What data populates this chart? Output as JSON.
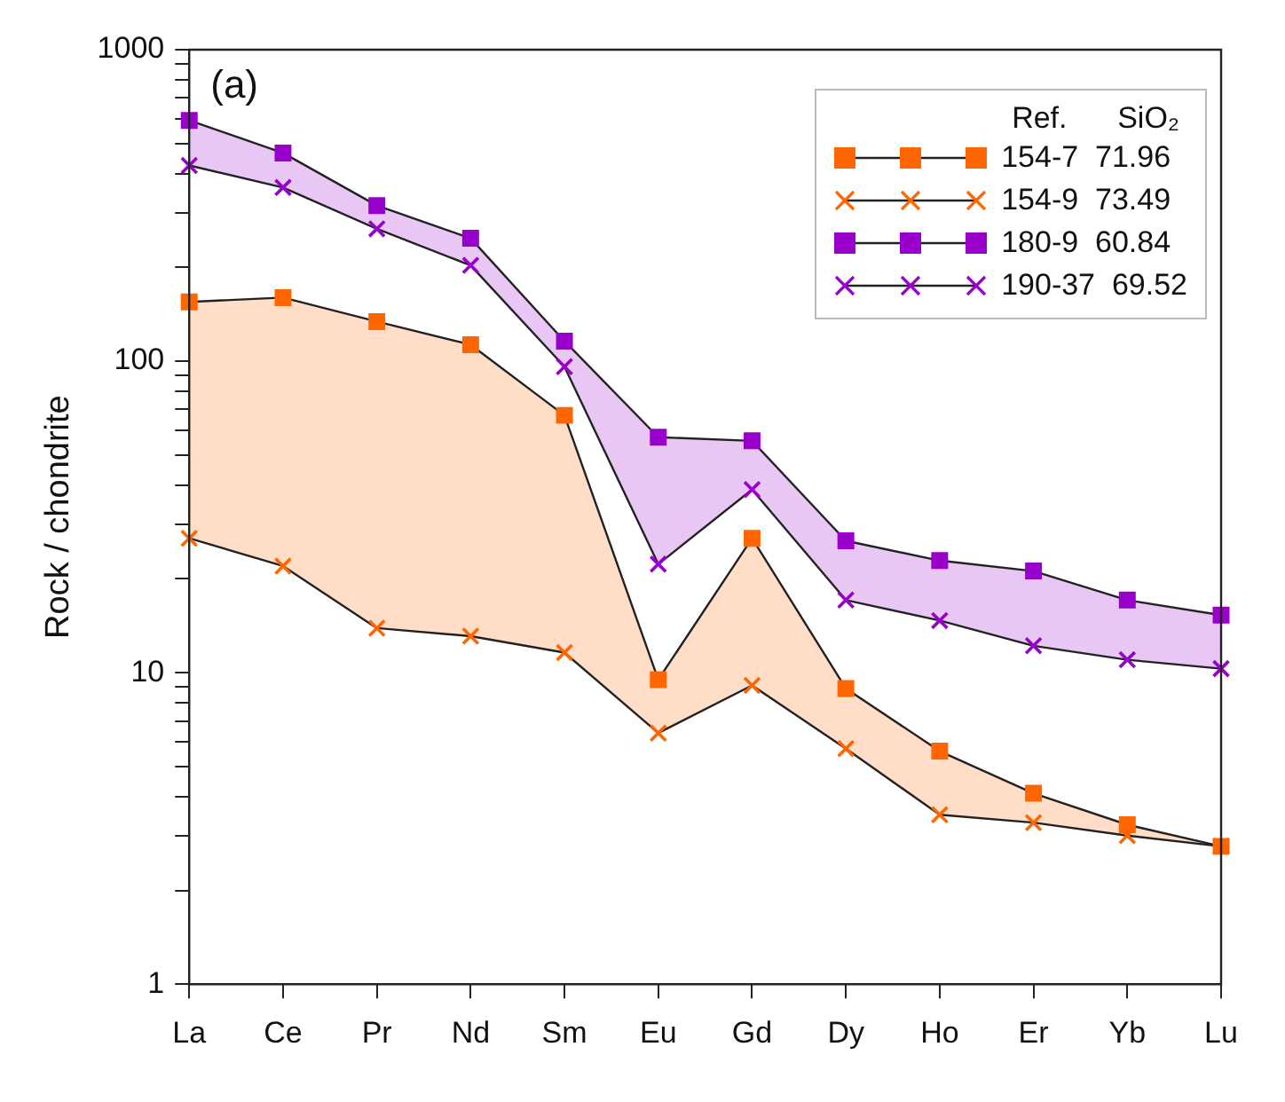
{
  "chart_data": {
    "type": "line",
    "ylabel": "Rock / chondrite",
    "annotations": [
      "(a)"
    ],
    "legend_title": "Ref.      SiO₂",
    "legend": "top right",
    "grid": false,
    "log": true,
    "categories": [
      "La",
      "Ce",
      "Pr",
      "Nd",
      "Sm",
      "Eu",
      "Gd",
      "Dy",
      "Ho",
      "Er",
      "Yb",
      "Lu"
    ],
    "ylim": [
      1,
      1000
    ],
    "yticks": [
      1,
      {
        "value": 2,
        "label": null
      },
      {
        "value": 3,
        "label": null
      },
      {
        "value": 4,
        "label": null
      },
      {
        "value": 5,
        "label": null
      },
      {
        "value": 6,
        "label": null
      },
      {
        "value": 7,
        "label": null
      },
      {
        "value": 8,
        "label": null
      },
      {
        "value": 9,
        "label": null
      },
      10,
      {
        "value": 20,
        "label": null
      },
      {
        "value": 30,
        "label": null
      },
      {
        "value": 40,
        "label": null
      },
      {
        "value": 50,
        "label": null
      },
      {
        "value": 60,
        "label": null
      },
      {
        "value": 70,
        "label": null
      },
      {
        "value": 80,
        "label": null
      },
      {
        "value": 90,
        "label": null
      },
      100,
      {
        "value": 200,
        "label": null
      },
      {
        "value": 300,
        "label": null
      },
      {
        "value": 400,
        "label": null
      },
      {
        "value": 500,
        "label": null
      },
      {
        "value": 600,
        "label": null
      },
      {
        "value": 700,
        "label": null
      },
      {
        "value": 800,
        "label": null
      },
      {
        "value": 900,
        "label": null
      },
      1000
    ],
    "series": [
      {
        "name": "154-7  71.96",
        "color": "#ff6600",
        "marker": "square",
        "values": [
          155,
          160,
          134,
          113,
          67,
          9.5,
          27,
          8.9,
          5.6,
          4.1,
          3.25,
          2.77
        ],
        "lower": [
          27,
          22,
          13.9,
          13.1,
          11.6,
          6.4,
          9.1,
          5.7,
          3.5,
          3.3,
          3.0,
          2.77
        ],
        "upper": [
          155,
          160,
          134,
          113,
          67,
          9.5,
          27,
          8.9,
          5.6,
          4.1,
          3.25,
          2.77
        ]
      },
      {
        "name": "154-9  73.49",
        "color": "#ff6600",
        "marker": "cross",
        "values": [
          27,
          22,
          13.9,
          13.1,
          11.6,
          6.4,
          9.1,
          5.7,
          3.5,
          3.3,
          3.0,
          2.77
        ]
      },
      {
        "name": "180-9  60.84",
        "color": "#9900cc",
        "marker": "square",
        "values": [
          593,
          466,
          316,
          248,
          116,
          57,
          55.5,
          26.5,
          22.9,
          21.2,
          17.1,
          15.3
        ],
        "lower": [
          425,
          361,
          266,
          203,
          96,
          22.3,
          38.7,
          17.1,
          14.7,
          12.2,
          11,
          10.3
        ],
        "upper": [
          593,
          466,
          316,
          248,
          116,
          57,
          55.5,
          26.5,
          22.9,
          21.2,
          17.1,
          15.3
        ]
      },
      {
        "name": "190-37  69.52",
        "color": "#9900cc",
        "marker": "cross",
        "values": [
          425,
          361,
          266,
          203,
          96,
          22.3,
          38.7,
          17.1,
          14.7,
          12.2,
          11,
          10.3
        ]
      }
    ]
  }
}
